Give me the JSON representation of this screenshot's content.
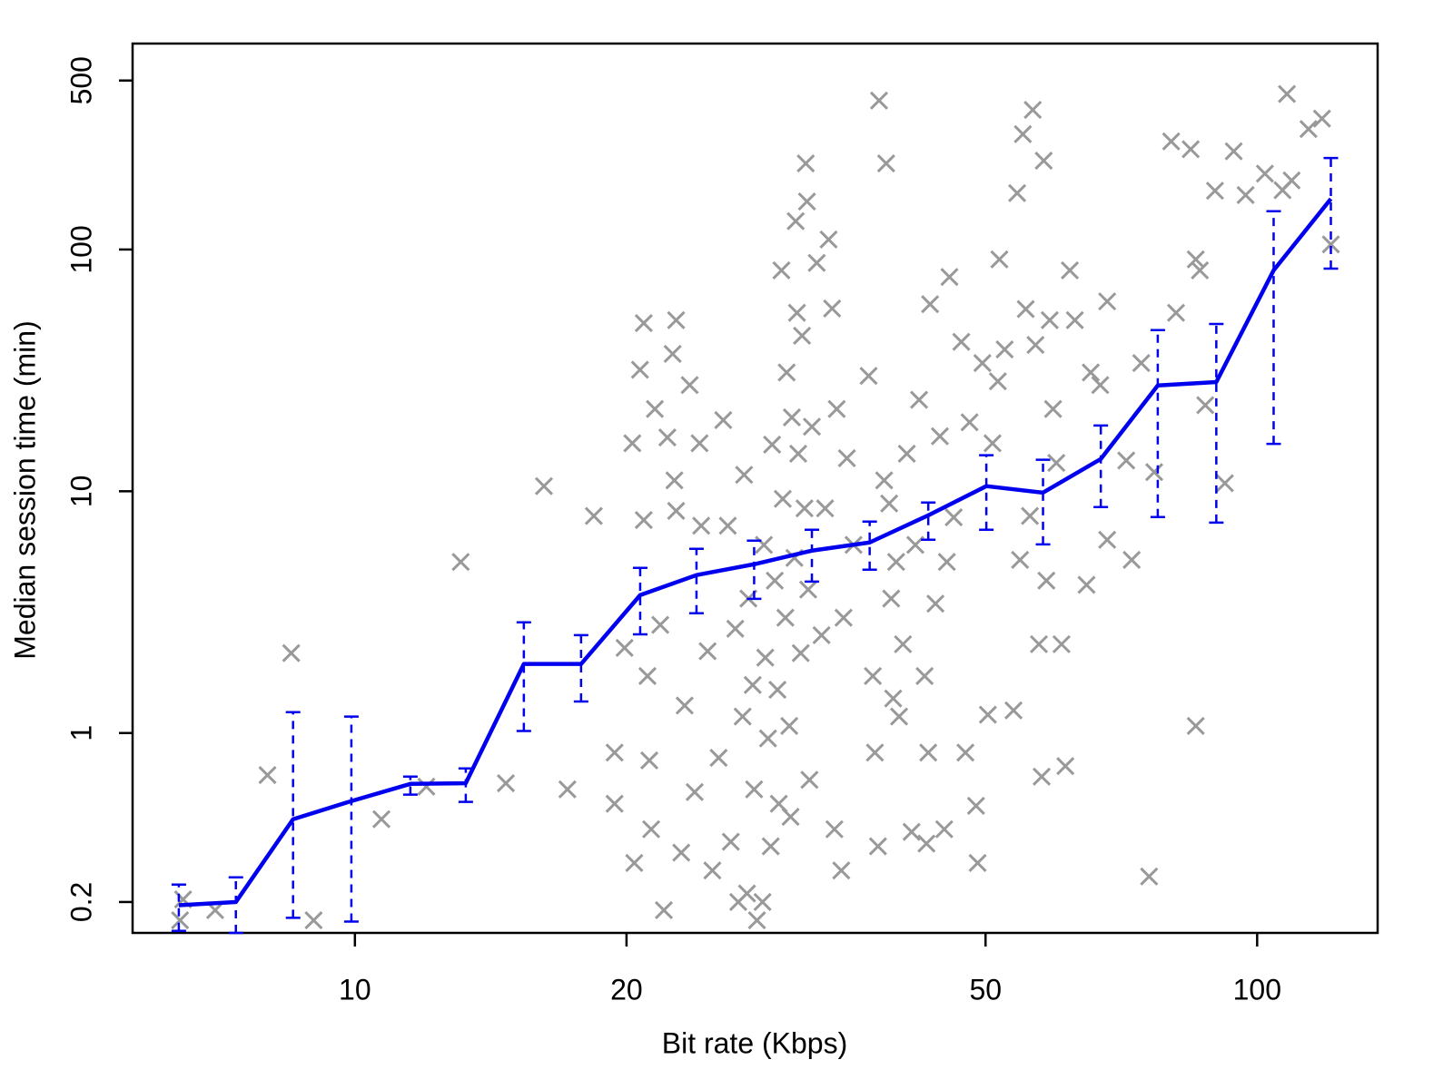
{
  "chart_data": {
    "type": "scatter",
    "xlabel": "Bit rate (Kbps)",
    "ylabel": "Median session time (min)",
    "log_x": true,
    "log_y": true,
    "xlim": [
      5.67,
      136
    ],
    "ylim": [
      0.149,
      711
    ],
    "xticks": [
      10,
      20,
      50,
      100
    ],
    "yticks": [
      0.2,
      1,
      10,
      100,
      500
    ],
    "points": {
      "color": "#999999",
      "x": [
        6.4,
        6.45,
        7.0,
        8.0,
        8.5,
        9.0,
        10.7,
        12.0,
        13.1,
        14.7,
        16.2,
        17.2,
        18.4,
        19.4,
        19.4,
        19.9,
        20.3,
        20.4,
        20.7,
        20.9,
        20.9,
        21.1,
        21.2,
        21.3,
        21.5,
        21.8,
        22.0,
        22.2,
        22.5,
        22.6,
        22.7,
        22.7,
        23.0,
        23.2,
        23.5,
        23.8,
        24.1,
        24.2,
        24.6,
        24.9,
        25.3,
        25.6,
        25.9,
        26.1,
        26.4,
        26.6,
        26.9,
        27.0,
        27.2,
        27.3,
        27.6,
        27.7,
        27.9,
        28.3,
        28.4,
        28.5,
        28.7,
        28.9,
        29.0,
        29.2,
        29.4,
        29.5,
        29.7,
        29.8,
        30.0,
        30.1,
        30.3,
        30.4,
        30.5,
        30.7,
        30.8,
        30.9,
        31.0,
        31.2,
        31.3,
        31.5,
        31.6,
        31.7,
        31.8,
        31.9,
        32.1,
        32.5,
        32.9,
        33.2,
        33.5,
        33.8,
        34.0,
        34.2,
        34.6,
        34.8,
        35.1,
        35.7,
        37.1,
        37.5,
        37.7,
        38.0,
        38.1,
        38.6,
        38.8,
        39.1,
        39.3,
        39.5,
        39.8,
        40.1,
        40.5,
        40.9,
        41.4,
        41.8,
        42.2,
        42.8,
        43.0,
        43.2,
        43.4,
        44.0,
        44.5,
        45.0,
        45.3,
        45.6,
        46.1,
        47.0,
        47.5,
        48.0,
        48.8,
        49.0,
        49.6,
        50.3,
        50.9,
        51.6,
        51.8,
        52.5,
        53.7,
        54.2,
        54.6,
        55.0,
        55.4,
        56.0,
        56.4,
        56.8,
        57.3,
        57.7,
        58.0,
        58.4,
        58.9,
        59.4,
        59.9,
        60.7,
        61.3,
        62.0,
        62.8,
        64.7,
        65.4,
        67.0,
        68.2,
        68.2,
        71.6,
        72.6,
        74.4,
        75.9,
        76.9,
        80.3,
        81.3,
        84.4,
        85.5,
        85.5,
        86.4,
        87.6,
        89.8,
        92.1,
        94.2,
        97.1,
        102,
        106.7,
        107.9,
        109.2,
        114,
        118,
        120.7
      ],
      "y": [
        0.168,
        0.205,
        0.185,
        0.67,
        2.14,
        0.168,
        0.44,
        0.6,
        5.1,
        0.62,
        10.5,
        0.585,
        7.9,
        0.83,
        0.51,
        2.25,
        15.8,
        0.29,
        31.8,
        49.6,
        7.6,
        1.72,
        0.77,
        0.4,
        21.9,
        2.8,
        0.185,
        16.7,
        37,
        11.1,
        51,
        8.3,
        0.32,
        1.3,
        27.5,
        0.57,
        15.8,
        7.2,
        2.18,
        0.27,
        0.79,
        19.7,
        7.2,
        0.355,
        2.7,
        0.2,
        1.17,
        11.7,
        0.217,
        3.6,
        1.58,
        0.585,
        0.168,
        0.2,
        6.0,
        2.05,
        0.95,
        0.34,
        15.6,
        4.27,
        1.51,
        0.51,
        82,
        9.3,
        3.0,
        31,
        1.07,
        0.45,
        20.2,
        5.3,
        131,
        54.7,
        14.3,
        2.14,
        44,
        8.5,
        227,
        158,
        3.92,
        0.64,
        18.5,
        88,
        2.54,
        8.5,
        110,
        57,
        0.4,
        21.9,
        0.27,
        3.0,
        13.7,
        6.0,
        30,
        1.72,
        0.83,
        0.34,
        413,
        11.1,
        227,
        8.9,
        3.6,
        1.39,
        5.1,
        1.17,
        2.33,
        14.3,
        0.39,
        6.0,
        23.9,
        1.72,
        0.349,
        0.83,
        59.4,
        3.43,
        16.9,
        0.4,
        5.1,
        77,
        7.8,
        41.5,
        0.83,
        19.3,
        0.5,
        0.29,
        33.9,
        1.19,
        15.8,
        28.5,
        91,
        38.6,
        1.24,
        171,
        5.2,
        300,
        56.7,
        7.9,
        378,
        40.3,
        2.33,
        0.66,
        233,
        4.27,
        51,
        21.9,
        13.1,
        2.33,
        0.73,
        82,
        51,
        4.1,
        31,
        27.5,
        61,
        6.3,
        13.4,
        5.2,
        33.9,
        0.255,
        12.0,
        280,
        54.7,
        260,
        91,
        1.07,
        82,
        22.7,
        175,
        10.8,
        255,
        168,
        206,
        176,
        440,
        193,
        315,
        348,
        105
      ]
    },
    "median": {
      "type": "line",
      "color": "#0000ee",
      "x": [
        6.38,
        7.38,
        8.54,
        9.91,
        11.52,
        13.27,
        15.39,
        17.81,
        20.71,
        23.91,
        27.7,
        32.1,
        37.2,
        43.2,
        50.1,
        57.9,
        67.1,
        77.6,
        90.1,
        104.3,
        120.7
      ],
      "values": [
        0.194,
        0.2,
        0.44,
        0.523,
        0.616,
        0.62,
        1.93,
        1.93,
        3.72,
        4.5,
        4.99,
        5.68,
        6.14,
        7.95,
        10.5,
        9.87,
        13.6,
        27.4,
        28.3,
        82,
        162
      ],
      "lower": [
        0.152,
        0.149,
        0.172,
        0.166,
        0.556,
        0.519,
        1.02,
        1.35,
        2.56,
        3.13,
        3.59,
        4.23,
        4.74,
        6.3,
        6.93,
        6.03,
        8.6,
        7.82,
        7.42,
        15.7,
        83.4
      ],
      "upper": [
        0.236,
        0.253,
        1.22,
        1.17,
        0.66,
        0.714,
        2.87,
        2.54,
        4.82,
        5.78,
        6.25,
        6.93,
        7.49,
        8.98,
        14.1,
        13.5,
        18.7,
        46.4,
        49.2,
        144,
        239
      ]
    }
  }
}
